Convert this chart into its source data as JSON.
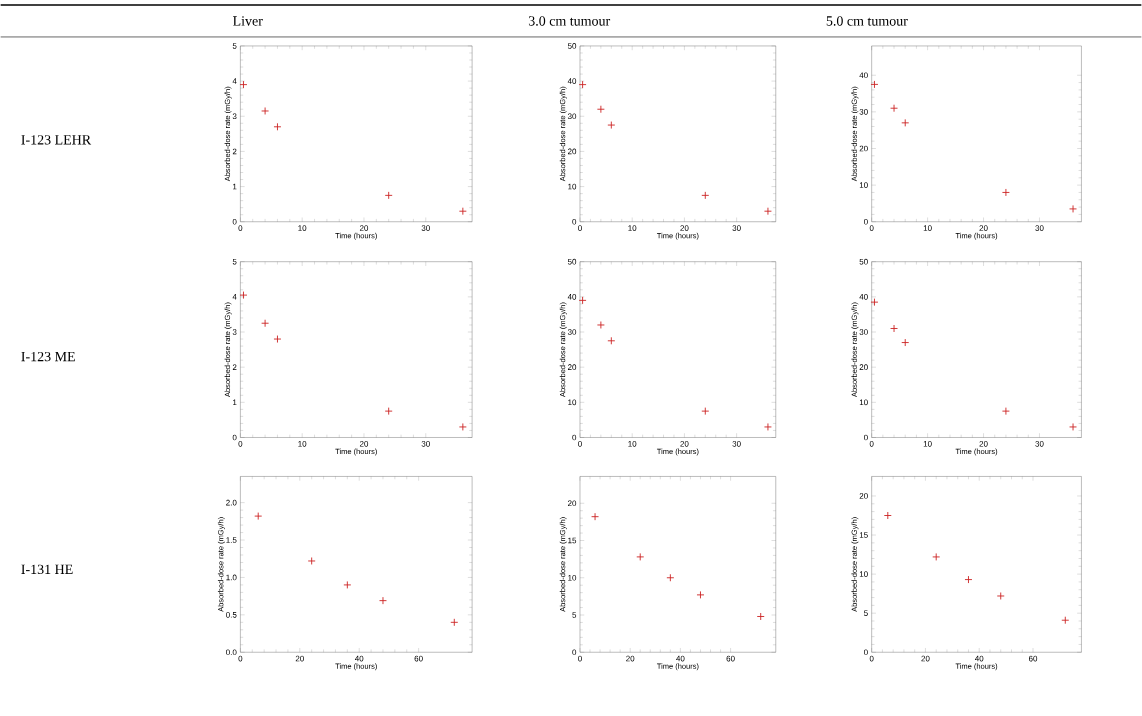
{
  "chart_data": [
    {
      "type": "other",
      "annotations": [
        "Liver",
        "3.0 cm tumour",
        "5.0 cm tumour",
        "I-123 LEHR",
        "I-123 ME",
        "I-131 HE"
      ]
    },
    {
      "type": "scatter",
      "xlabel": "Time (hours)",
      "ylabel": "Absorbed-dose rate (mGy/h)",
      "x": [
        0.5,
        4,
        6,
        24,
        36
      ],
      "values": [
        3.9,
        3.15,
        2.7,
        0.75,
        0.3
      ],
      "color": "#cc2222",
      "marker": "cross",
      "xlim": [
        0,
        37.5
      ],
      "xticks": [
        0,
        10,
        20,
        30
      ],
      "ylim": [
        0,
        5
      ],
      "yticks": [
        0,
        1,
        2,
        3,
        4,
        5
      ]
    },
    {
      "type": "scatter",
      "xlabel": "Time (hours)",
      "ylabel": "Absorbed-dose rate (mGy/h)",
      "x": [
        0.5,
        4,
        6,
        24,
        36
      ],
      "values": [
        39,
        32,
        27.5,
        7.5,
        3
      ],
      "color": "#cc2222",
      "marker": "cross",
      "xlim": [
        0,
        37.5
      ],
      "xticks": [
        0,
        10,
        20,
        30
      ],
      "ylim": [
        0,
        50
      ],
      "yticks": [
        0,
        10,
        20,
        30,
        40,
        50
      ]
    },
    {
      "type": "scatter",
      "xlabel": "Time (hours)",
      "ylabel": "Absorbed-dose rate (mGy/h)",
      "x": [
        0.5,
        4,
        6,
        24,
        36
      ],
      "values": [
        37.5,
        31,
        27,
        8,
        3.5
      ],
      "color": "#cc2222",
      "marker": "cross",
      "xlim": [
        0,
        37.5
      ],
      "xticks": [
        0,
        10,
        20,
        30
      ],
      "ylim": [
        0,
        48
      ],
      "yticks": [
        0,
        10,
        20,
        30,
        40
      ]
    },
    {
      "type": "scatter",
      "xlabel": "Time (hours)",
      "ylabel": "Absorbed-dose rate (mGy/h)",
      "x": [
        0.5,
        4,
        6,
        24,
        36
      ],
      "values": [
        4.05,
        3.25,
        2.8,
        0.75,
        0.3
      ],
      "color": "#cc2222",
      "marker": "cross",
      "xlim": [
        0,
        37.5
      ],
      "xticks": [
        0,
        10,
        20,
        30
      ],
      "ylim": [
        0,
        5
      ],
      "yticks": [
        0,
        1,
        2,
        3,
        4,
        5
      ]
    },
    {
      "type": "scatter",
      "xlabel": "Time (hours)",
      "ylabel": "Absorbed-dose rate (mGy/h)",
      "x": [
        0.5,
        4,
        6,
        24,
        36
      ],
      "values": [
        39,
        32,
        27.5,
        7.5,
        3
      ],
      "color": "#cc2222",
      "marker": "cross",
      "xlim": [
        0,
        37.5
      ],
      "xticks": [
        0,
        10,
        20,
        30
      ],
      "ylim": [
        0,
        50
      ],
      "yticks": [
        0,
        10,
        20,
        30,
        40,
        50
      ]
    },
    {
      "type": "scatter",
      "xlabel": "Time (hours)",
      "ylabel": "Absorbed-dose rate (mGy/h)",
      "x": [
        0.5,
        4,
        6,
        24,
        36
      ],
      "values": [
        38.5,
        31,
        27,
        7.5,
        3
      ],
      "color": "#cc2222",
      "marker": "cross",
      "xlim": [
        0,
        37.5
      ],
      "xticks": [
        0,
        10,
        20,
        30
      ],
      "ylim": [
        0,
        50
      ],
      "yticks": [
        0,
        10,
        20,
        30,
        40,
        50
      ]
    },
    {
      "type": "scatter",
      "xlabel": "Time (hours)",
      "ylabel": "Absorbed-dose rate (mGy/h)",
      "x": [
        6,
        24,
        36,
        48,
        72
      ],
      "values": [
        1.82,
        1.22,
        0.9,
        0.69,
        0.4
      ],
      "color": "#cc2222",
      "marker": "cross",
      "xlim": [
        0,
        78
      ],
      "xticks": [
        0,
        20,
        40,
        60
      ],
      "ylim": [
        0,
        2.35
      ],
      "yticks": [
        {
          "value": 0,
          "label": "0.0"
        },
        0.5,
        {
          "value": 1,
          "label": "1.0"
        },
        1.5,
        {
          "value": 2,
          "label": "2.0"
        }
      ]
    },
    {
      "type": "scatter",
      "xlabel": "Time (hours)",
      "ylabel": "Absorbed-dose rate (mGy/h)",
      "x": [
        6,
        24,
        36,
        48,
        72
      ],
      "values": [
        18.2,
        12.8,
        10,
        7.7,
        4.8
      ],
      "color": "#cc2222",
      "marker": "cross",
      "xlim": [
        0,
        78
      ],
      "xticks": [
        0,
        20,
        40,
        60
      ],
      "ylim": [
        0,
        23.6
      ],
      "yticks": [
        0,
        5,
        10,
        15,
        20
      ]
    },
    {
      "type": "scatter",
      "xlabel": "Time (hours)",
      "ylabel": "Absorbed-dose rate (mGy/h)",
      "x": [
        6,
        24,
        36,
        48,
        72
      ],
      "values": [
        17.5,
        12.2,
        9.3,
        7.2,
        4.1
      ],
      "color": "#cc2222",
      "marker": "cross",
      "xlim": [
        0,
        78
      ],
      "xticks": [
        0,
        20,
        40,
        60
      ],
      "ylim": [
        0,
        22.5
      ],
      "yticks": [
        0,
        5,
        10,
        15,
        20
      ]
    }
  ]
}
